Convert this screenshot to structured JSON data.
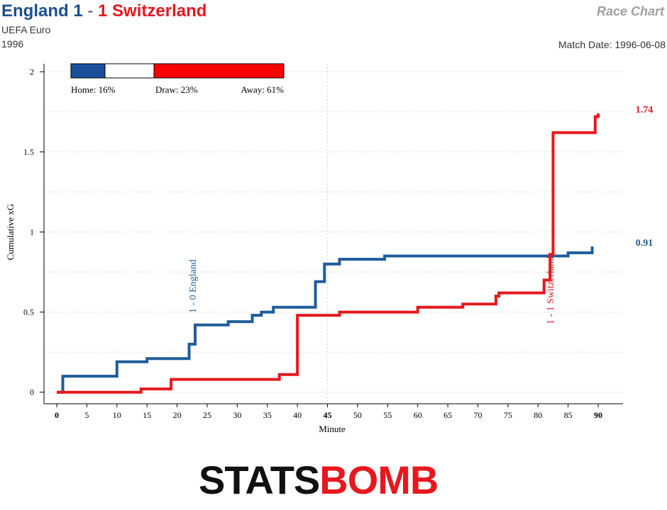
{
  "header": {
    "home_label": "England 1",
    "dash": "-",
    "away_label": "1 Switzerland",
    "competition": "UEFA Euro",
    "season": "1996",
    "chart_kind": "Race Chart",
    "match_date": "Match Date: 1996-06-08"
  },
  "colors": {
    "home": "#1f5d9a",
    "away": "#e6181e",
    "grid": "#d6d6d6"
  },
  "logo": {
    "part1": "STATS",
    "part2": "BOMB"
  },
  "chart_data": {
    "type": "line",
    "xlabel": "Minute",
    "ylabel": "Cumulative xG",
    "xlim": [
      0,
      92
    ],
    "ylim": [
      -0.05,
      2.05
    ],
    "xticks": [
      0,
      5,
      10,
      15,
      20,
      25,
      30,
      35,
      40,
      45,
      50,
      55,
      60,
      65,
      70,
      75,
      80,
      85,
      90
    ],
    "xtick_bold": [
      0,
      45,
      90
    ],
    "yticks": [
      0,
      0.5,
      1,
      1.5,
      2
    ],
    "ytick_labels": [
      "0",
      "0.5",
      "1",
      "1.5",
      "2"
    ],
    "y_minor_grid": [
      0.25,
      0.75,
      1.25,
      1.75
    ],
    "halftime": 45,
    "win_probability": {
      "home": 16,
      "draw": 23,
      "away": 61,
      "home_label": "Home: 16%",
      "draw_label": "Draw: 23%",
      "away_label": "Away: 61%"
    },
    "series": [
      {
        "name": "England",
        "side": "home",
        "final_label": "0.91",
        "points": [
          [
            0,
            0
          ],
          [
            1,
            0.1
          ],
          [
            10,
            0.19
          ],
          [
            15,
            0.21
          ],
          [
            22,
            0.3
          ],
          [
            23,
            0.42
          ],
          [
            28.5,
            0.44
          ],
          [
            32.5,
            0.48
          ],
          [
            34,
            0.5
          ],
          [
            36,
            0.53
          ],
          [
            43,
            0.69
          ],
          [
            44.5,
            0.8
          ],
          [
            47,
            0.83
          ],
          [
            54.5,
            0.85
          ],
          [
            85,
            0.87
          ],
          [
            89,
            0.91
          ]
        ]
      },
      {
        "name": "Switzerland",
        "side": "away",
        "final_label": "1.74",
        "points": [
          [
            0,
            0
          ],
          [
            14,
            0.02
          ],
          [
            19,
            0.08
          ],
          [
            37,
            0.11
          ],
          [
            40,
            0.48
          ],
          [
            47,
            0.5
          ],
          [
            60,
            0.53
          ],
          [
            67.5,
            0.55
          ],
          [
            73,
            0.6
          ],
          [
            73.5,
            0.62
          ],
          [
            81,
            0.7
          ],
          [
            82,
            0.86
          ],
          [
            82.5,
            1.62
          ],
          [
            89.5,
            1.72
          ],
          [
            90,
            1.74
          ]
        ]
      }
    ],
    "goals": [
      {
        "label": "1 - 0 England",
        "minute": 22.5,
        "side": "home"
      },
      {
        "label": "1 - 1 Switzerland",
        "minute": 82,
        "side": "away"
      }
    ]
  }
}
